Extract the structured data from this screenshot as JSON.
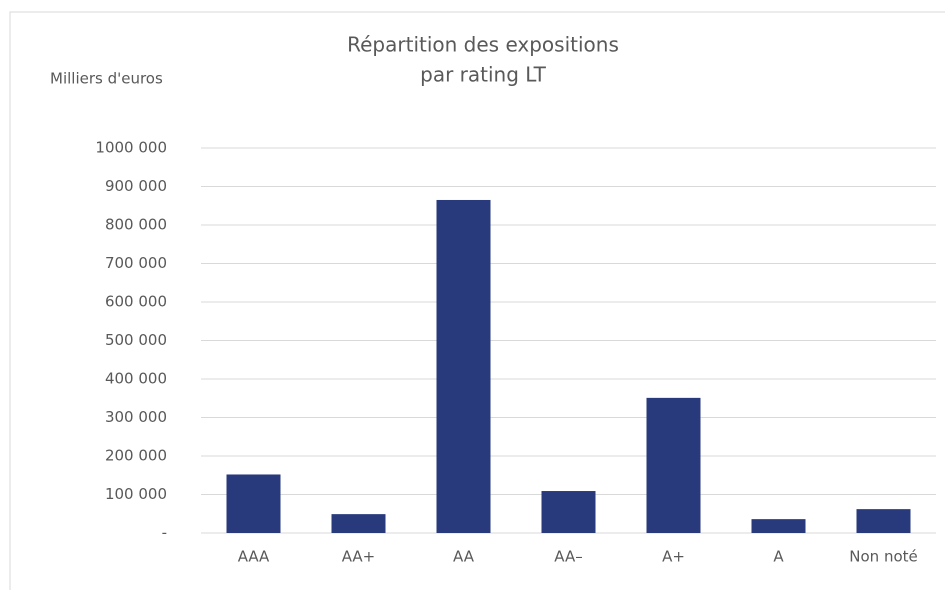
{
  "chart_data": {
    "type": "bar",
    "title": [
      "Répartition des expositions",
      "par rating LT"
    ],
    "y_label": "Milliers d'euros",
    "categories": [
      "AAA",
      "AA+",
      "AA",
      "AA–",
      "A+",
      "A",
      "Non noté"
    ],
    "values": [
      152000,
      49000,
      865000,
      109000,
      351000,
      36000,
      62000
    ],
    "color": "#283a7c",
    "ylim": [
      0,
      1000000
    ],
    "yticks": [
      {
        "value": 0,
        "label": "-"
      },
      {
        "value": 100000,
        "label": "100 000"
      },
      {
        "value": 200000,
        "label": "200 000"
      },
      {
        "value": 300000,
        "label": "300 000"
      },
      {
        "value": 400000,
        "label": "400 000"
      },
      {
        "value": 500000,
        "label": "500 000"
      },
      {
        "value": 600000,
        "label": "600 000"
      },
      {
        "value": 700000,
        "label": "700 000"
      },
      {
        "value": 800000,
        "label": "800 000"
      },
      {
        "value": 900000,
        "label": "900 000"
      },
      {
        "value": 1000000,
        "label": "1000 000"
      }
    ],
    "grid": true
  }
}
